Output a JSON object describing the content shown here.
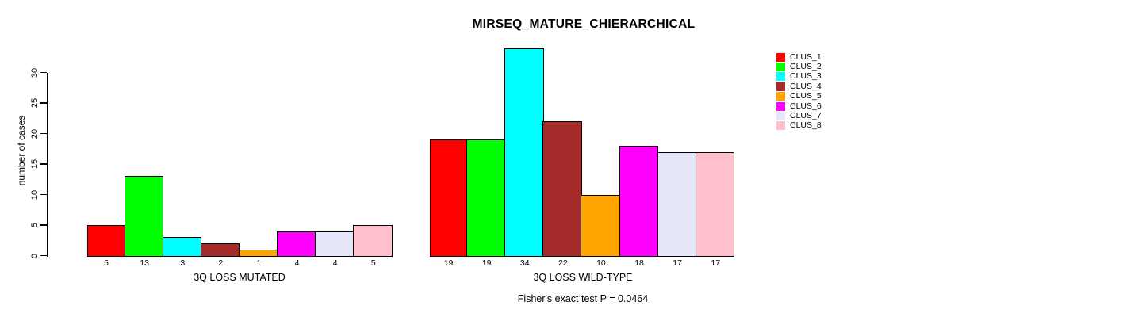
{
  "title": "MIRSEQ_MATURE_CHIERARCHICAL",
  "footer_note": "Fisher's exact test P = 0.0464",
  "chart_data": {
    "type": "bar",
    "title": "MIRSEQ_MATURE_CHIERARCHICAL",
    "ylabel": "number of cases",
    "xlabel": "",
    "ylim": [
      0,
      34
    ],
    "yticks": [
      0,
      5,
      10,
      15,
      20,
      25,
      30
    ],
    "grid": false,
    "legend_position": "right",
    "categories": [
      "CLUS_1",
      "CLUS_2",
      "CLUS_3",
      "CLUS_4",
      "CLUS_5",
      "CLUS_6",
      "CLUS_7",
      "CLUS_8"
    ],
    "series_colors": [
      "#FF0000",
      "#00FF00",
      "#00FFFF",
      "#A52A2A",
      "#FFA500",
      "#FF00FF",
      "#E6E6FA",
      "#FFC0CB"
    ],
    "groups": [
      {
        "label": "3Q LOSS MUTATED",
        "values": [
          5,
          13,
          3,
          2,
          1,
          4,
          4,
          5
        ]
      },
      {
        "label": "3Q LOSS WILD-TYPE",
        "values": [
          19,
          19,
          34,
          22,
          10,
          18,
          17,
          17
        ]
      }
    ],
    "annotation": "Fisher's exact test P = 0.0464"
  },
  "legend": {
    "items": [
      {
        "label": "CLUS_1",
        "color": "#FF0000"
      },
      {
        "label": "CLUS_2",
        "color": "#00FF00"
      },
      {
        "label": "CLUS_3",
        "color": "#00FFFF"
      },
      {
        "label": "CLUS_4",
        "color": "#A52A2A"
      },
      {
        "label": "CLUS_5",
        "color": "#FFA500"
      },
      {
        "label": "CLUS_6",
        "color": "#FF00FF"
      },
      {
        "label": "CLUS_7",
        "color": "#E6E6FA"
      },
      {
        "label": "CLUS_8",
        "color": "#FFC0CB"
      }
    ]
  }
}
